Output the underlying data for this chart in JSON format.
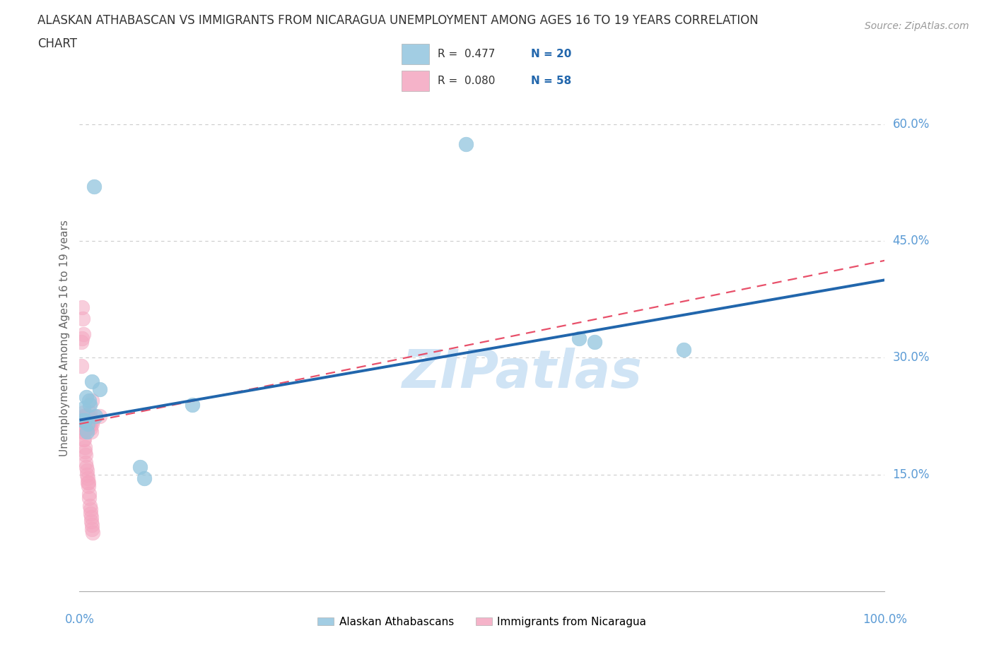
{
  "title_line1": "ALASKAN ATHABASCAN VS IMMIGRANTS FROM NICARAGUA UNEMPLOYMENT AMONG AGES 16 TO 19 YEARS CORRELATION",
  "title_line2": "CHART",
  "source": "Source: ZipAtlas.com",
  "ylabel": "Unemployment Among Ages 16 to 19 years",
  "watermark": "ZIPatlas",
  "legend_blue_label": "Alaskan Athabascans",
  "legend_pink_label": "Immigrants from Nicaragua",
  "blue_color": "#92c5de",
  "pink_color": "#f4a6c0",
  "blue_line_color": "#2166ac",
  "pink_line_color": "#e8506a",
  "title_color": "#333333",
  "axis_label_color": "#5b9bd5",
  "watermark_color": "#d0e4f5",
  "background_color": "#ffffff",
  "grid_color": "#cccccc",
  "source_color": "#999999",
  "legend_N_color": "#2166ac",
  "legend_R_color": "#333333",
  "source_fontsize": 10,
  "title_fontsize": 12,
  "R_blue": "0.477",
  "N_blue": "20",
  "R_pink": "0.080",
  "N_pink": "58",
  "xlim": [
    0,
    100
  ],
  "ylim": [
    0,
    65
  ],
  "ytick_values": [
    15,
    30,
    45,
    60
  ],
  "ytick_labels": [
    "15.0%",
    "30.0%",
    "45.0%",
    "60.0%"
  ],
  "blue_trend": [
    0,
    22.0,
    100,
    40.0
  ],
  "pink_trend": [
    0,
    21.5,
    100,
    42.5
  ],
  "blue_x": [
    1.5,
    1.8,
    0.8,
    1.2,
    0.5,
    0.4,
    0.6,
    1.0,
    0.9,
    2.5,
    48.0,
    62.0,
    64.0,
    75.0,
    14.0,
    7.5,
    8.0,
    2.0,
    1.3,
    0.7
  ],
  "blue_y": [
    27.0,
    52.0,
    25.0,
    24.5,
    23.5,
    22.0,
    22.0,
    21.5,
    20.5,
    26.0,
    57.5,
    32.5,
    32.0,
    31.0,
    24.0,
    16.0,
    14.5,
    22.5,
    24.0,
    22.0
  ],
  "pink_x": [
    0.3,
    0.4,
    0.5,
    0.6,
    0.7,
    0.8,
    0.9,
    1.0,
    1.1,
    1.2,
    1.3,
    1.4,
    1.5,
    1.6,
    0.25,
    0.35,
    0.45,
    0.55,
    0.65,
    0.75,
    0.85,
    0.95,
    1.05,
    1.15,
    1.25,
    1.35,
    1.45,
    1.55,
    0.2,
    0.28,
    0.32,
    0.38,
    0.42,
    0.48,
    0.52,
    0.58,
    0.62,
    0.68,
    0.72,
    0.78,
    0.82,
    0.88,
    0.92,
    0.98,
    1.02,
    1.08,
    1.12,
    1.18,
    1.22,
    1.28,
    1.32,
    1.38,
    1.42,
    1.48,
    1.52,
    1.58,
    1.62,
    2.5
  ],
  "pink_y": [
    36.5,
    35.0,
    23.0,
    22.5,
    22.0,
    22.5,
    22.0,
    21.5,
    22.0,
    22.5,
    23.0,
    22.0,
    24.5,
    22.0,
    32.0,
    32.5,
    33.0,
    22.5,
    22.0,
    21.5,
    21.5,
    21.0,
    21.0,
    22.0,
    21.5,
    21.0,
    20.5,
    21.5,
    29.0,
    22.0,
    21.5,
    21.0,
    20.5,
    20.5,
    19.5,
    19.5,
    18.5,
    18.0,
    17.5,
    16.5,
    16.0,
    15.5,
    15.0,
    14.0,
    14.5,
    14.0,
    13.5,
    12.5,
    12.0,
    11.0,
    10.5,
    10.0,
    9.5,
    9.0,
    8.5,
    8.0,
    7.5,
    22.5
  ]
}
